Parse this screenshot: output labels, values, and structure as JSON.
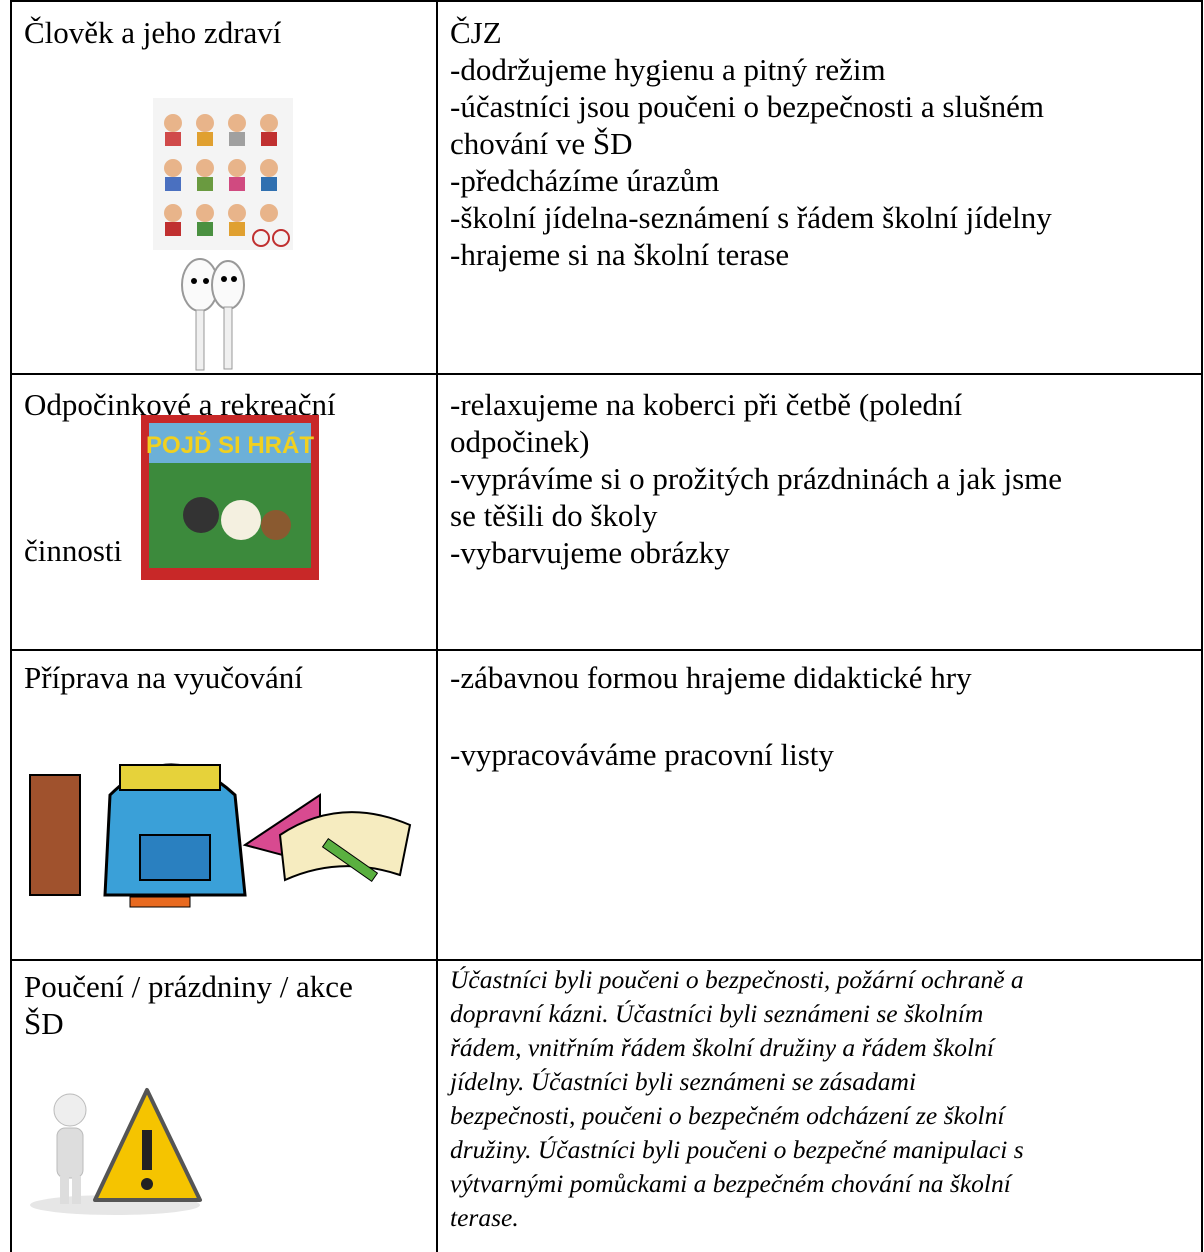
{
  "table": {
    "rows": [
      {
        "label": [
          "Člověk a jeho zdraví"
        ],
        "lines": [
          "ČJZ",
          "-dodržujeme hygienu a pitný režim",
          "-účastníci jsou poučeni o bezpečnosti a slušném",
          "chování ve ŠD",
          "-předcházíme úrazům",
          "-školní jídelna-seznámení s řádem školní jídelny",
          "-hrajeme si na školní terase"
        ]
      },
      {
        "label": [
          "Odpočinkové a rekreační",
          "činnosti"
        ],
        "lines": [
          "-relaxujeme na koberci při četbě (polední",
          "odpočinek)",
          "-vyprávíme si o prožitých prázdninách a jak jsme",
          "se těšili do školy",
          "-vybarvujeme obrázky"
        ]
      },
      {
        "label": [
          "Příprava na vyučování"
        ],
        "lines": [
          "-zábavnou formou hrajeme didaktické hry",
          "-vypracováváme pracovní listy"
        ]
      },
      {
        "label": [
          "Poučení / prázdniny / akce",
          "ŠD"
        ],
        "lines": [
          "Účastníci byli poučeni o bezpečnosti, požární ochraně a",
          "dopravní kázni. Účastníci byli seznámeni se školním",
          "řádem, vnitřním řádem školní družiny a řádem školní",
          "jídelny. Účastníci byli seznámeni se zásadami",
          "bezpečnosti, poučeni o bezpečném odcházení ze školní",
          "družiny. Účastníci byli poučeni o bezpečné manipulaci s",
          "výtvarnými pomůckami a bezpečném chování na školní",
          "terase."
        ]
      }
    ]
  }
}
